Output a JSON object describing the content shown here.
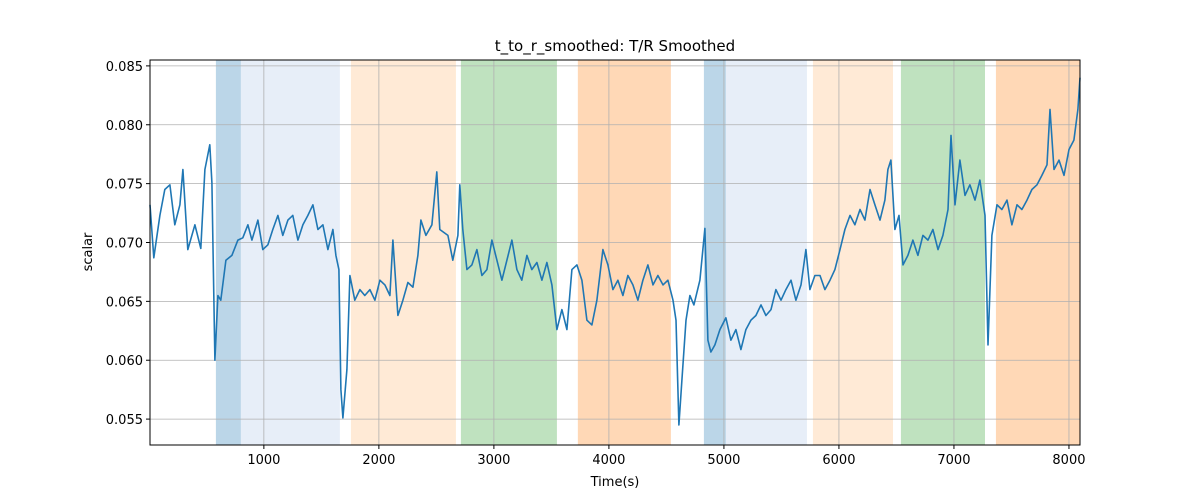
{
  "chart_data": {
    "type": "line",
    "title": "t_to_r_smoothed: T/R Smoothed",
    "x_label": "Time(s)",
    "y_label": "scalar",
    "color": "#1f77b4",
    "grid": true,
    "xlim": [
      10,
      8096
    ],
    "ylim": [
      0.0528,
      0.0855
    ],
    "xticks": [
      1000,
      2000,
      3000,
      4000,
      5000,
      6000,
      7000,
      8000
    ],
    "yticks": [
      0.055,
      {
        "value": 0.06,
        "label": "0.060"
      },
      0.065,
      {
        "value": 0.07,
        "label": "0.070"
      },
      0.075,
      {
        "value": 0.08,
        "label": "0.080"
      },
      0.085
    ],
    "span_alpha": 0.3,
    "spans": [
      {
        "start": 583,
        "end": 800,
        "color": "#1f77b4"
      },
      {
        "start": 800,
        "end": 1661,
        "color": "#aec7e8"
      },
      {
        "start": 1757,
        "end": 2670,
        "color": "#ffbb78"
      },
      {
        "start": 2713,
        "end": 3548,
        "color": "#2ca02c"
      },
      {
        "start": 3730,
        "end": 4539,
        "color": "#ff7f0e"
      },
      {
        "start": 4826,
        "end": 5017,
        "color": "#1f77b4"
      },
      {
        "start": 5017,
        "end": 5722,
        "color": "#aec7e8"
      },
      {
        "start": 5774,
        "end": 6470,
        "color": "#ffbb78"
      },
      {
        "start": 6539,
        "end": 7270,
        "color": "#2ca02c"
      },
      {
        "start": 7365,
        "end": 8096,
        "color": "#ff7f0e"
      }
    ],
    "x": [
      10,
      43,
      96,
      139,
      183,
      226,
      270,
      296,
      339,
      400,
      452,
      487,
      530,
      548,
      574,
      600,
      626,
      670,
      722,
      774,
      817,
      861,
      896,
      948,
      991,
      1035,
      1078,
      1122,
      1165,
      1209,
      1252,
      1296,
      1339,
      1383,
      1426,
      1470,
      1513,
      1557,
      1600,
      1626,
      1652,
      1670,
      1687,
      1722,
      1748,
      1791,
      1835,
      1878,
      1922,
      1965,
      2009,
      2052,
      2096,
      2122,
      2165,
      2209,
      2252,
      2296,
      2339,
      2365,
      2409,
      2461,
      2504,
      2530,
      2600,
      2643,
      2687,
      2704,
      2730,
      2765,
      2809,
      2852,
      2896,
      2939,
      2983,
      3026,
      3070,
      3113,
      3157,
      3200,
      3243,
      3287,
      3330,
      3374,
      3417,
      3461,
      3504,
      3548,
      3591,
      3635,
      3678,
      3722,
      3765,
      3809,
      3852,
      3896,
      3948,
      3991,
      4035,
      4078,
      4122,
      4165,
      4209,
      4252,
      4296,
      4339,
      4383,
      4426,
      4470,
      4513,
      4557,
      4583,
      4609,
      4635,
      4670,
      4704,
      4739,
      4791,
      4835,
      4861,
      4887,
      4922,
      4965,
      5017,
      5061,
      5104,
      5148,
      5191,
      5235,
      5278,
      5322,
      5365,
      5409,
      5452,
      5496,
      5539,
      5583,
      5626,
      5670,
      5713,
      5748,
      5791,
      5835,
      5878,
      5922,
      5965,
      6009,
      6052,
      6096,
      6139,
      6183,
      6226,
      6270,
      6313,
      6357,
      6400,
      6426,
      6452,
      6487,
      6522,
      6557,
      6600,
      6643,
      6687,
      6730,
      6774,
      6817,
      6861,
      6904,
      6948,
      6974,
      7009,
      7052,
      7096,
      7139,
      7183,
      7226,
      7270,
      7296,
      7330,
      7374,
      7417,
      7461,
      7504,
      7548,
      7591,
      7635,
      7678,
      7722,
      7765,
      7809,
      7835,
      7870,
      7913,
      7957,
      8000,
      8043,
      8078,
      8096
    ],
    "values": [
      0.0732,
      0.0687,
      0.0723,
      0.0745,
      0.0749,
      0.0715,
      0.0732,
      0.0762,
      0.0694,
      0.0715,
      0.0695,
      0.0762,
      0.0783,
      0.0751,
      0.06,
      0.0655,
      0.0651,
      0.0685,
      0.0689,
      0.0702,
      0.0704,
      0.0715,
      0.0702,
      0.0719,
      0.0694,
      0.0698,
      0.0711,
      0.0723,
      0.0706,
      0.0719,
      0.0723,
      0.0702,
      0.0715,
      0.0723,
      0.0732,
      0.0711,
      0.0715,
      0.0694,
      0.0711,
      0.0689,
      0.0677,
      0.0575,
      0.0551,
      0.0592,
      0.0672,
      0.0651,
      0.066,
      0.0655,
      0.066,
      0.0651,
      0.0668,
      0.0664,
      0.0655,
      0.0702,
      0.0638,
      0.0651,
      0.0666,
      0.0662,
      0.0689,
      0.0719,
      0.0706,
      0.0715,
      0.076,
      0.0711,
      0.0706,
      0.0685,
      0.0706,
      0.0749,
      0.0711,
      0.0677,
      0.0681,
      0.0694,
      0.0672,
      0.0677,
      0.0702,
      0.0685,
      0.0668,
      0.0685,
      0.0702,
      0.0677,
      0.0668,
      0.0689,
      0.0677,
      0.0683,
      0.0668,
      0.0683,
      0.0664,
      0.0626,
      0.0643,
      0.0626,
      0.0677,
      0.0681,
      0.0668,
      0.0634,
      0.063,
      0.0651,
      0.0694,
      0.0681,
      0.066,
      0.0668,
      0.0655,
      0.0672,
      0.0664,
      0.0651,
      0.0668,
      0.0681,
      0.0664,
      0.0672,
      0.0664,
      0.0668,
      0.0651,
      0.0634,
      0.0545,
      0.0583,
      0.0634,
      0.0655,
      0.0647,
      0.0668,
      0.0712,
      0.0617,
      0.0607,
      0.0613,
      0.0626,
      0.0636,
      0.0617,
      0.0626,
      0.0609,
      0.0626,
      0.0634,
      0.0638,
      0.0647,
      0.0638,
      0.0643,
      0.066,
      0.0651,
      0.066,
      0.0668,
      0.0651,
      0.0664,
      0.0694,
      0.066,
      0.0672,
      0.0672,
      0.066,
      0.0668,
      0.0677,
      0.0694,
      0.0711,
      0.0723,
      0.0715,
      0.0728,
      0.0719,
      0.0745,
      0.0732,
      0.0719,
      0.0736,
      0.0762,
      0.077,
      0.0711,
      0.0723,
      0.0681,
      0.0689,
      0.0702,
      0.0689,
      0.0706,
      0.0702,
      0.0711,
      0.0694,
      0.0706,
      0.0728,
      0.0791,
      0.0732,
      0.077,
      0.074,
      0.0749,
      0.0736,
      0.0753,
      0.0723,
      0.0613,
      0.0706,
      0.0732,
      0.0728,
      0.0736,
      0.0715,
      0.0732,
      0.0728,
      0.0736,
      0.0745,
      0.0749,
      0.0757,
      0.0766,
      0.0813,
      0.0762,
      0.077,
      0.0757,
      0.0779,
      0.0787,
      0.0813,
      0.084
    ]
  }
}
